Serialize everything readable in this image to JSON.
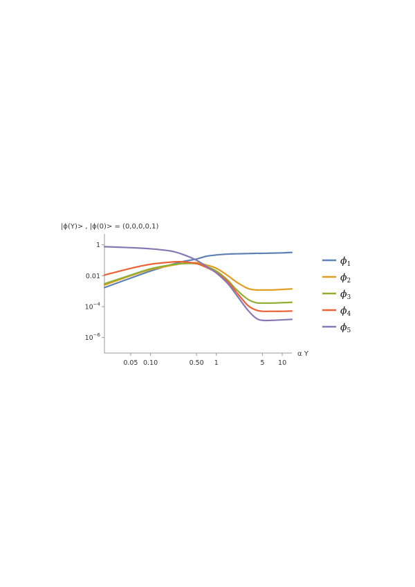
{
  "chart_data": {
    "type": "line",
    "title": "",
    "ylabel": "|ϕ(Y)> , |ϕ(0)> = (0,0,0,0,1)",
    "xlabel": "α Y",
    "x_scale": "log",
    "y_scale": "log",
    "xlim": [
      0.02,
      14
    ],
    "ylim": [
      1e-07,
      5
    ],
    "x_ticks": [
      0.05,
      0.1,
      0.5,
      1,
      5,
      10
    ],
    "x_tick_labels": [
      "0.05",
      "0.10",
      "0.50",
      "1",
      "5",
      "10"
    ],
    "y_ticks": [
      1,
      0.01,
      0.0001,
      1e-06
    ],
    "y_tick_labels": [
      {
        "base": "1",
        "exp": ""
      },
      {
        "base": "0.01",
        "exp": ""
      },
      {
        "base": "10",
        "exp": "−4"
      },
      {
        "base": "10",
        "exp": "−6"
      }
    ],
    "x": [
      0.02,
      0.05,
      0.1,
      0.2,
      0.3,
      0.5,
      0.7,
      1,
      1.5,
      2,
      3,
      4,
      5,
      7,
      10,
      14
    ],
    "series": [
      {
        "name": "ϕ",
        "sub": "1",
        "color": "#5E81B5",
        "values": [
          0.0017,
          0.007,
          0.02,
          0.05,
          0.08,
          0.12,
          0.18,
          0.22,
          0.25,
          0.26,
          0.27,
          0.28,
          0.28,
          0.29,
          0.3,
          0.32
        ]
      },
      {
        "name": "ϕ",
        "sub": "2",
        "color": "#E19C24",
        "values": [
          0.0025,
          0.01,
          0.025,
          0.045,
          0.06,
          0.07,
          0.05,
          0.03,
          0.01,
          0.004,
          0.0015,
          0.0012,
          0.0012,
          0.0012,
          0.0013,
          0.0014
        ]
      },
      {
        "name": "ϕ",
        "sub": "3",
        "color": "#8FB032",
        "values": [
          0.003,
          0.011,
          0.028,
          0.05,
          0.06,
          0.06,
          0.04,
          0.02,
          0.005,
          0.0013,
          0.0003,
          0.00018,
          0.00017,
          0.00017,
          0.00018,
          0.00019
        ]
      },
      {
        "name": "ϕ",
        "sub": "4",
        "color": "#EB6235",
        "values": [
          0.011,
          0.03,
          0.055,
          0.075,
          0.08,
          0.06,
          0.035,
          0.016,
          0.004,
          0.0009,
          0.00012,
          6e-05,
          5e-05,
          5e-05,
          5e-05,
          5.2e-05
        ]
      },
      {
        "name": "ϕ",
        "sub": "5",
        "color": "#8778B3",
        "values": [
          0.75,
          0.65,
          0.55,
          0.4,
          0.25,
          0.1,
          0.04,
          0.015,
          0.003,
          0.0006,
          6e-05,
          1.8e-05,
          1.3e-05,
          1.3e-05,
          1.4e-05,
          1.5e-05
        ]
      }
    ]
  }
}
